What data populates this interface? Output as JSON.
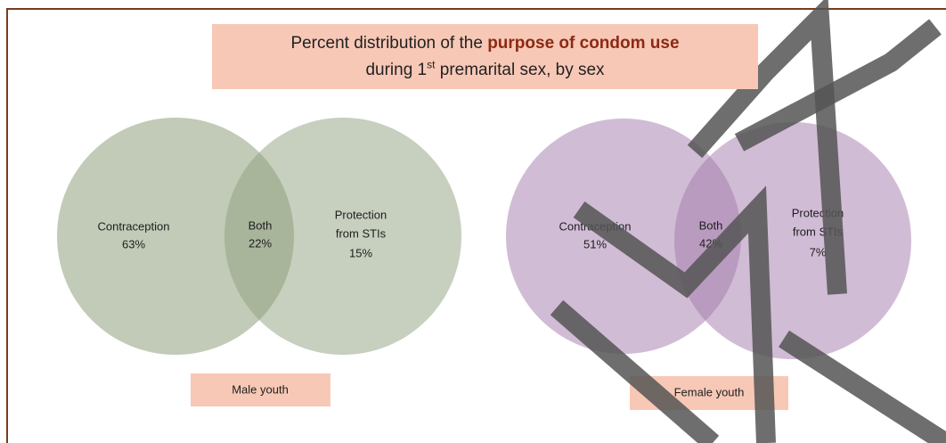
{
  "title": {
    "line1_prefix": "Percent distribution of the ",
    "line1_highlight": "purpose of condom use",
    "line2_prefix": "during 1",
    "line2_superscript": "st",
    "line2_suffix": " premarital sex, by sex"
  },
  "panels": [
    {
      "group": "Male youth",
      "left": {
        "label": "Contraception",
        "value": "63%"
      },
      "overlap": {
        "label": "Both",
        "value": "22%"
      },
      "right": {
        "label_lines": [
          "Protection",
          "from STIs"
        ],
        "value": "15%"
      }
    },
    {
      "group": "Female youth",
      "left": {
        "label": "Contraception",
        "value": "51%"
      },
      "overlap": {
        "label": "Both",
        "value": "42%"
      },
      "right": {
        "label_lines": [
          "Protection",
          "from STIs"
        ],
        "value": "7%"
      }
    }
  ]
}
